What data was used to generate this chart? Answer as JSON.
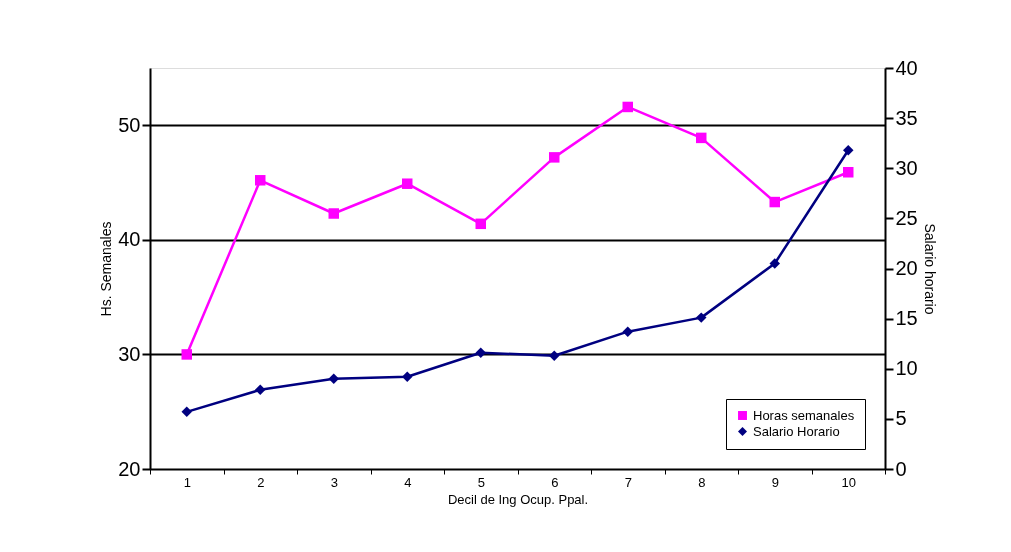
{
  "chart_data": {
    "type": "line",
    "xlabel": "Decil de Ing Ocup. Ppal.",
    "ylabel": "Hs. Semanales",
    "y2label": "Salario horario",
    "categories": [
      "1",
      "2",
      "3",
      "4",
      "5",
      "6",
      "7",
      "8",
      "9",
      "10"
    ],
    "series": [
      {
        "name": "Horas semanales",
        "color": "#ff00ff",
        "marker": "square",
        "values": [
          30.0,
          45.2,
          42.3,
          44.9,
          41.4,
          47.2,
          51.6,
          48.9,
          43.3,
          45.9
        ]
      },
      {
        "name": "Salario Horario",
        "color": "#000080",
        "marker": "diamond",
        "axis": "y2",
        "values": [
          5.7,
          7.9,
          9.0,
          9.2,
          11.6,
          11.3,
          13.7,
          15.1,
          20.5,
          31.8
        ]
      }
    ],
    "ylim": [
      20,
      55
    ],
    "yticks": [
      20,
      30,
      40,
      50
    ],
    "y2lim": [
      0,
      40
    ],
    "y2ticks": [
      0,
      5,
      10,
      15,
      20,
      25,
      30,
      35,
      40
    ],
    "grid": "y",
    "legend": "bottom right"
  }
}
